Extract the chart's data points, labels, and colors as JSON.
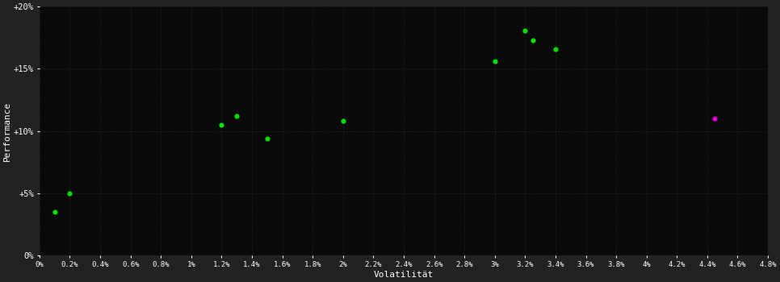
{
  "green_points": [
    [
      0.001,
      3.5
    ],
    [
      0.002,
      5.0
    ],
    [
      0.012,
      10.5
    ],
    [
      0.013,
      11.2
    ],
    [
      0.015,
      9.4
    ],
    [
      0.02,
      10.8
    ],
    [
      0.03,
      15.6
    ],
    [
      0.032,
      18.1
    ],
    [
      0.0325,
      17.3
    ],
    [
      0.034,
      16.6
    ]
  ],
  "magenta_points": [
    [
      0.0445,
      11.0
    ]
  ],
  "outer_bg_color": "#222222",
  "plot_bg_color": "#0a0a0a",
  "grid_color": "#333333",
  "green_color": "#00dd00",
  "magenta_color": "#dd00dd",
  "text_color": "#ffffff",
  "xlabel": "Volatilität",
  "ylabel": "Performance",
  "xlim": [
    0,
    0.048
  ],
  "ylim": [
    0,
    20
  ],
  "marker_size": 20
}
